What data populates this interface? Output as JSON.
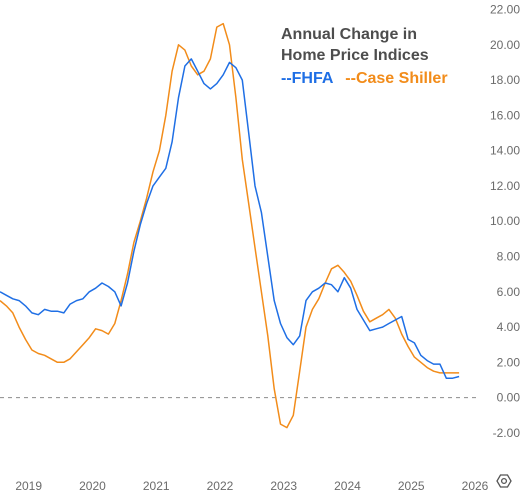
{
  "chart_data": {
    "type": "line",
    "title": [
      "Annual Change in",
      "Home Price Indices"
    ],
    "legend": {
      "placement": "top-right",
      "entries": [
        "--FHFA",
        "--Case Shiller"
      ]
    },
    "colors": {
      "FHFA": "#1f6fe5",
      "Case Shiller": "#f28c1a",
      "tick": "#6b6b6b",
      "title": "#4d4d4d",
      "zero_line": "#8c8c8c"
    },
    "x_ticks": [
      "2019",
      "2020",
      "2021",
      "2022",
      "2023",
      "2024",
      "2025",
      "2026"
    ],
    "y_ticks": [
      "22.00",
      "20.00",
      "18.00",
      "16.00",
      "14.00",
      "12.00",
      "10.00",
      "8.00",
      "6.00",
      "4.00",
      "2.00",
      "0.00",
      "-2.00"
    ],
    "ylim": [
      -2.6,
      22.0
    ],
    "xlim": [
      2018.55,
      2026.0
    ],
    "grid": false,
    "zero_line": "dashed",
    "series": [
      {
        "name": "FHFA",
        "x": [
          2018.55,
          2018.65,
          2018.75,
          2018.85,
          2018.95,
          2019.05,
          2019.15,
          2019.25,
          2019.35,
          2019.45,
          2019.55,
          2019.65,
          2019.75,
          2019.85,
          2019.95,
          2020.05,
          2020.15,
          2020.25,
          2020.35,
          2020.45,
          2020.55,
          2020.65,
          2020.75,
          2020.85,
          2020.95,
          2021.05,
          2021.15,
          2021.25,
          2021.35,
          2021.45,
          2021.55,
          2021.65,
          2021.75,
          2021.85,
          2021.95,
          2022.05,
          2022.15,
          2022.25,
          2022.35,
          2022.45,
          2022.55,
          2022.65,
          2022.75,
          2022.85,
          2022.95,
          2023.05,
          2023.15,
          2023.25,
          2023.35,
          2023.45,
          2023.55,
          2023.65,
          2023.75,
          2023.85,
          2023.95,
          2024.05,
          2024.15,
          2024.25,
          2024.35,
          2024.45,
          2024.55,
          2024.65,
          2024.75,
          2024.85,
          2024.95,
          2025.05,
          2025.15,
          2025.25,
          2025.35,
          2025.45,
          2025.55,
          2025.65,
          2025.75
        ],
        "values": [
          6.0,
          5.8,
          5.6,
          5.5,
          5.2,
          4.8,
          4.7,
          5.0,
          4.9,
          4.9,
          4.8,
          5.3,
          5.5,
          5.6,
          6.0,
          6.2,
          6.5,
          6.3,
          6.0,
          5.2,
          6.5,
          8.3,
          9.8,
          11.0,
          12.0,
          12.5,
          13.0,
          14.5,
          17.0,
          18.8,
          19.2,
          18.5,
          17.8,
          17.5,
          17.8,
          18.3,
          19.0,
          18.7,
          18.0,
          15.0,
          12.0,
          10.5,
          8.0,
          5.5,
          4.2,
          3.4,
          3.0,
          3.5,
          5.5,
          6.0,
          6.2,
          6.5,
          6.4,
          6.0,
          6.8,
          6.2,
          5.0,
          4.4,
          3.8,
          3.9,
          4.0,
          4.2,
          4.4,
          4.6,
          3.3,
          3.1,
          2.4,
          2.1,
          1.9,
          1.9,
          1.1,
          1.1,
          1.2
        ]
      },
      {
        "name": "Case Shiller",
        "x": [
          2018.55,
          2018.65,
          2018.75,
          2018.85,
          2018.95,
          2019.05,
          2019.15,
          2019.25,
          2019.35,
          2019.45,
          2019.55,
          2019.65,
          2019.75,
          2019.85,
          2019.95,
          2020.05,
          2020.15,
          2020.25,
          2020.35,
          2020.45,
          2020.55,
          2020.65,
          2020.75,
          2020.85,
          2020.95,
          2021.05,
          2021.15,
          2021.25,
          2021.35,
          2021.45,
          2021.55,
          2021.65,
          2021.75,
          2021.85,
          2021.95,
          2022.05,
          2022.15,
          2022.25,
          2022.35,
          2022.45,
          2022.55,
          2022.65,
          2022.75,
          2022.85,
          2022.95,
          2023.05,
          2023.15,
          2023.25,
          2023.35,
          2023.45,
          2023.55,
          2023.65,
          2023.75,
          2023.85,
          2023.95,
          2024.05,
          2024.15,
          2024.25,
          2024.35,
          2024.45,
          2024.55,
          2024.65,
          2024.75,
          2024.85,
          2024.95,
          2025.05,
          2025.15,
          2025.25,
          2025.35,
          2025.45,
          2025.55,
          2025.65,
          2025.75
        ],
        "values": [
          5.5,
          5.2,
          4.8,
          4.0,
          3.3,
          2.7,
          2.5,
          2.4,
          2.2,
          2.0,
          2.0,
          2.2,
          2.6,
          3.0,
          3.4,
          3.9,
          3.8,
          3.6,
          4.2,
          5.5,
          7.0,
          8.8,
          10.0,
          11.3,
          12.8,
          14.0,
          16.0,
          18.5,
          20.0,
          19.7,
          18.8,
          18.3,
          18.5,
          19.2,
          21.0,
          21.2,
          20.0,
          17.0,
          13.5,
          11.0,
          8.5,
          6.0,
          3.5,
          0.5,
          -1.5,
          -1.7,
          -1.0,
          1.5,
          4.0,
          5.0,
          5.6,
          6.5,
          7.3,
          7.5,
          7.1,
          6.6,
          5.8,
          4.9,
          4.3,
          4.5,
          4.7,
          5.0,
          4.5,
          3.6,
          2.9,
          2.3,
          2.0,
          1.7,
          1.5,
          1.4,
          1.4,
          1.4,
          1.4
        ]
      }
    ]
  },
  "ui": {
    "settings_icon": "settings-icon"
  }
}
